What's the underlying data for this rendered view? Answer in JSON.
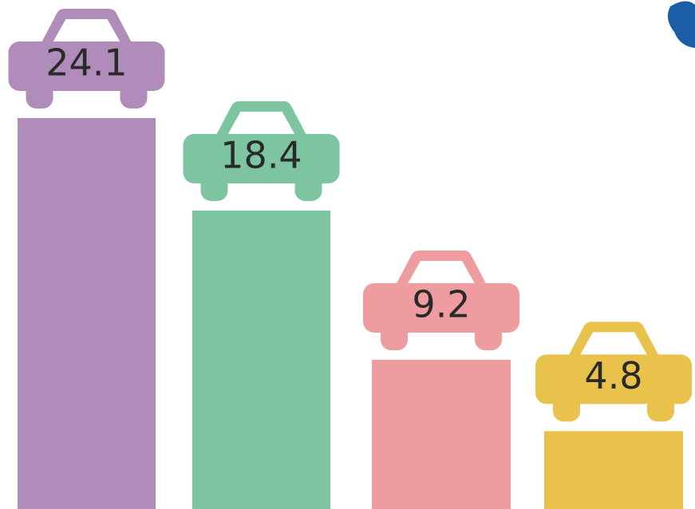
{
  "chart_data": {
    "type": "bar",
    "values": [
      24.1,
      18.4,
      9.2,
      4.8
    ],
    "colors": [
      "#b08cba",
      "#7cc5a0",
      "#ee9ca0",
      "#e8c24a"
    ]
  }
}
